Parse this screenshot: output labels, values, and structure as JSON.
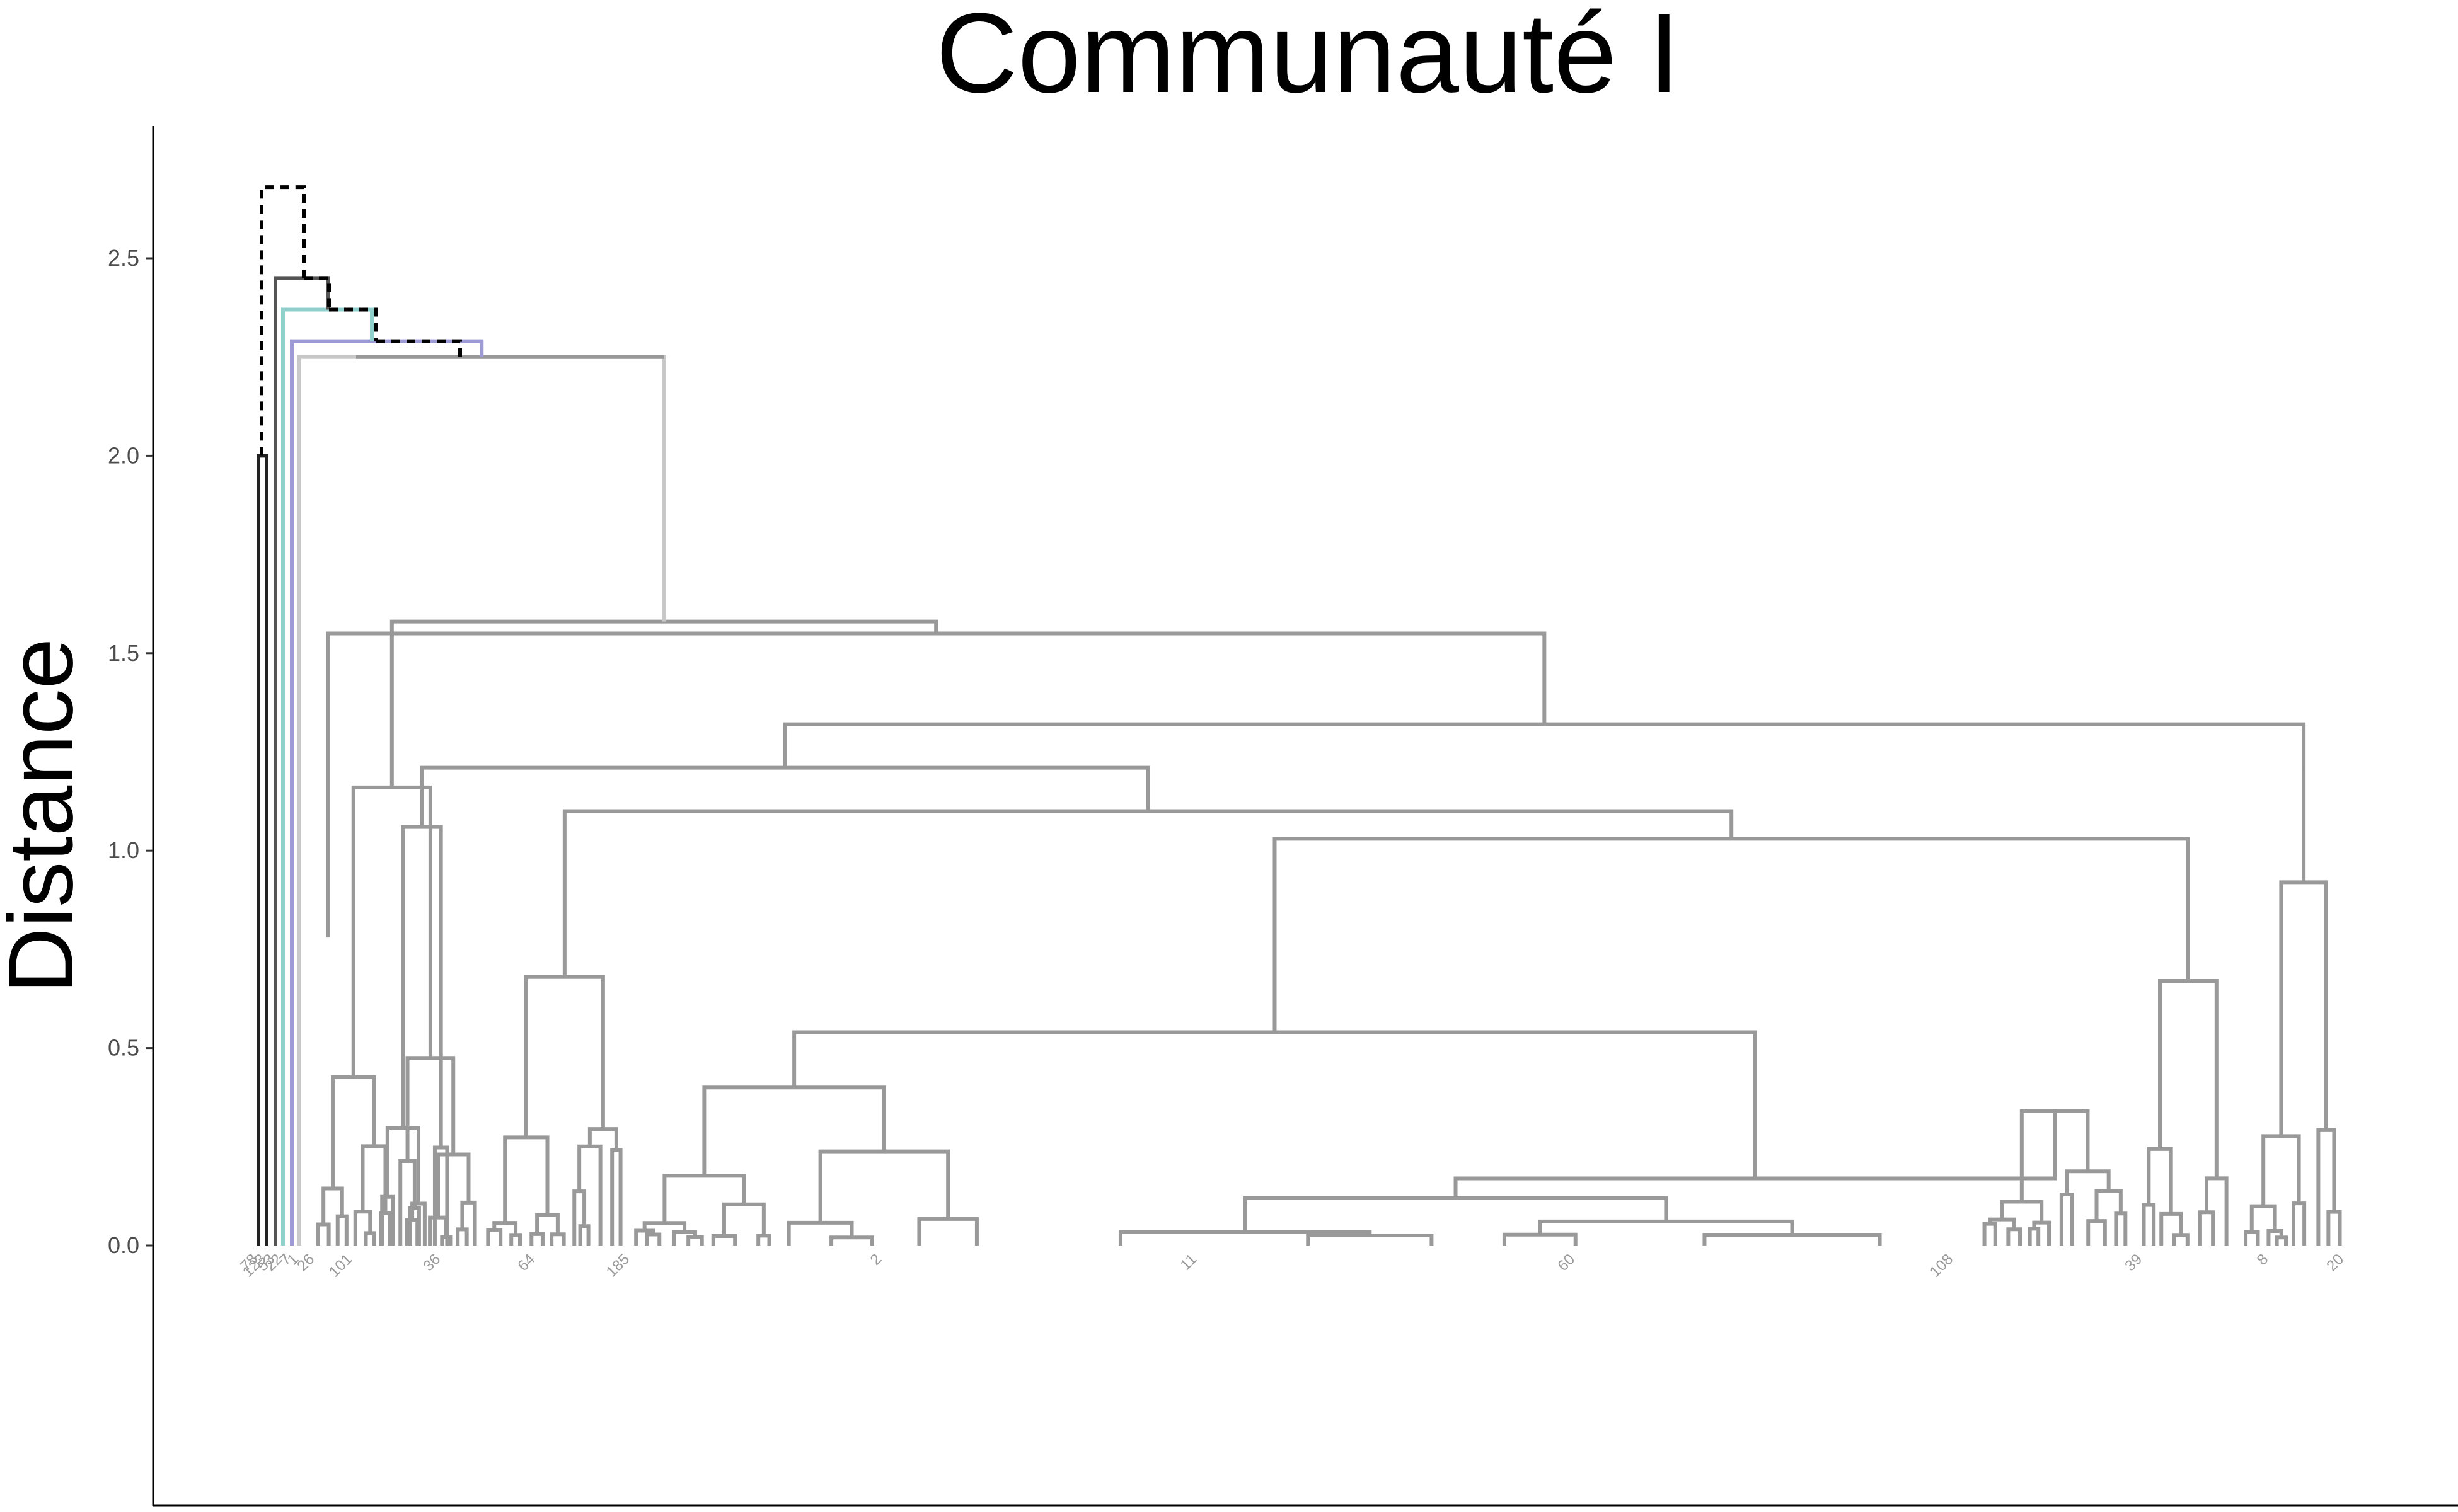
{
  "chart_data": {
    "type": "dendrogram",
    "title": "Communauté I",
    "ylabel": "Distance",
    "ylim": [
      -0.66,
      2.84
    ],
    "yticks": [
      0.0,
      0.5,
      1.0,
      1.5,
      2.0,
      2.5
    ],
    "ytick_labels": [
      "0.0",
      "0.5",
      "1.0",
      "1.5",
      "2.0",
      "2.5"
    ],
    "grid": false,
    "legend": "none",
    "root_height": 2.68,
    "cut_line_style": "dashed",
    "groups": [
      {
        "color": "#222222",
        "merge_height": 2.0,
        "leaves": [
          "78",
          "123"
        ]
      },
      {
        "color": "#555555",
        "merge_height": 2.45,
        "leaves": [
          "53"
        ]
      },
      {
        "color": "#8fd0cc",
        "merge_height": 2.37,
        "leaves": [
          "22"
        ]
      },
      {
        "color": "#9d99d4",
        "merge_height": 2.29,
        "leaves": [
          "7"
        ]
      },
      {
        "color": "#c8c8c8",
        "merge_height": 2.25,
        "leaves": [
          "1"
        ]
      },
      {
        "color": "#999999",
        "merge_height": 2.25,
        "leaves": [
          "..."
        ]
      }
    ],
    "main_cluster_heights": [
      2.25,
      1.58,
      1.55,
      1.32,
      1.25,
      1.21,
      1.16,
      1.1,
      1.06,
      1.03,
      0.91,
      0.86,
      0.78,
      0.74,
      0.68,
      0.54,
      0.46,
      0.41,
      0.37,
      0.33,
      0.29,
      0.25,
      0.18,
      0.15,
      0.11,
      0.07,
      0.04
    ],
    "leaf_labels_visible": [
      "78",
      "123",
      "53",
      "22",
      "7",
      "1",
      "26",
      "101",
      "36",
      "64",
      "185",
      "2",
      "11",
      "60",
      "108",
      "39",
      "8",
      "20"
    ]
  },
  "colors": {
    "background": "#ffffff",
    "axis": "#000000",
    "main_tree": "#999999",
    "cut_line": "#000000"
  }
}
